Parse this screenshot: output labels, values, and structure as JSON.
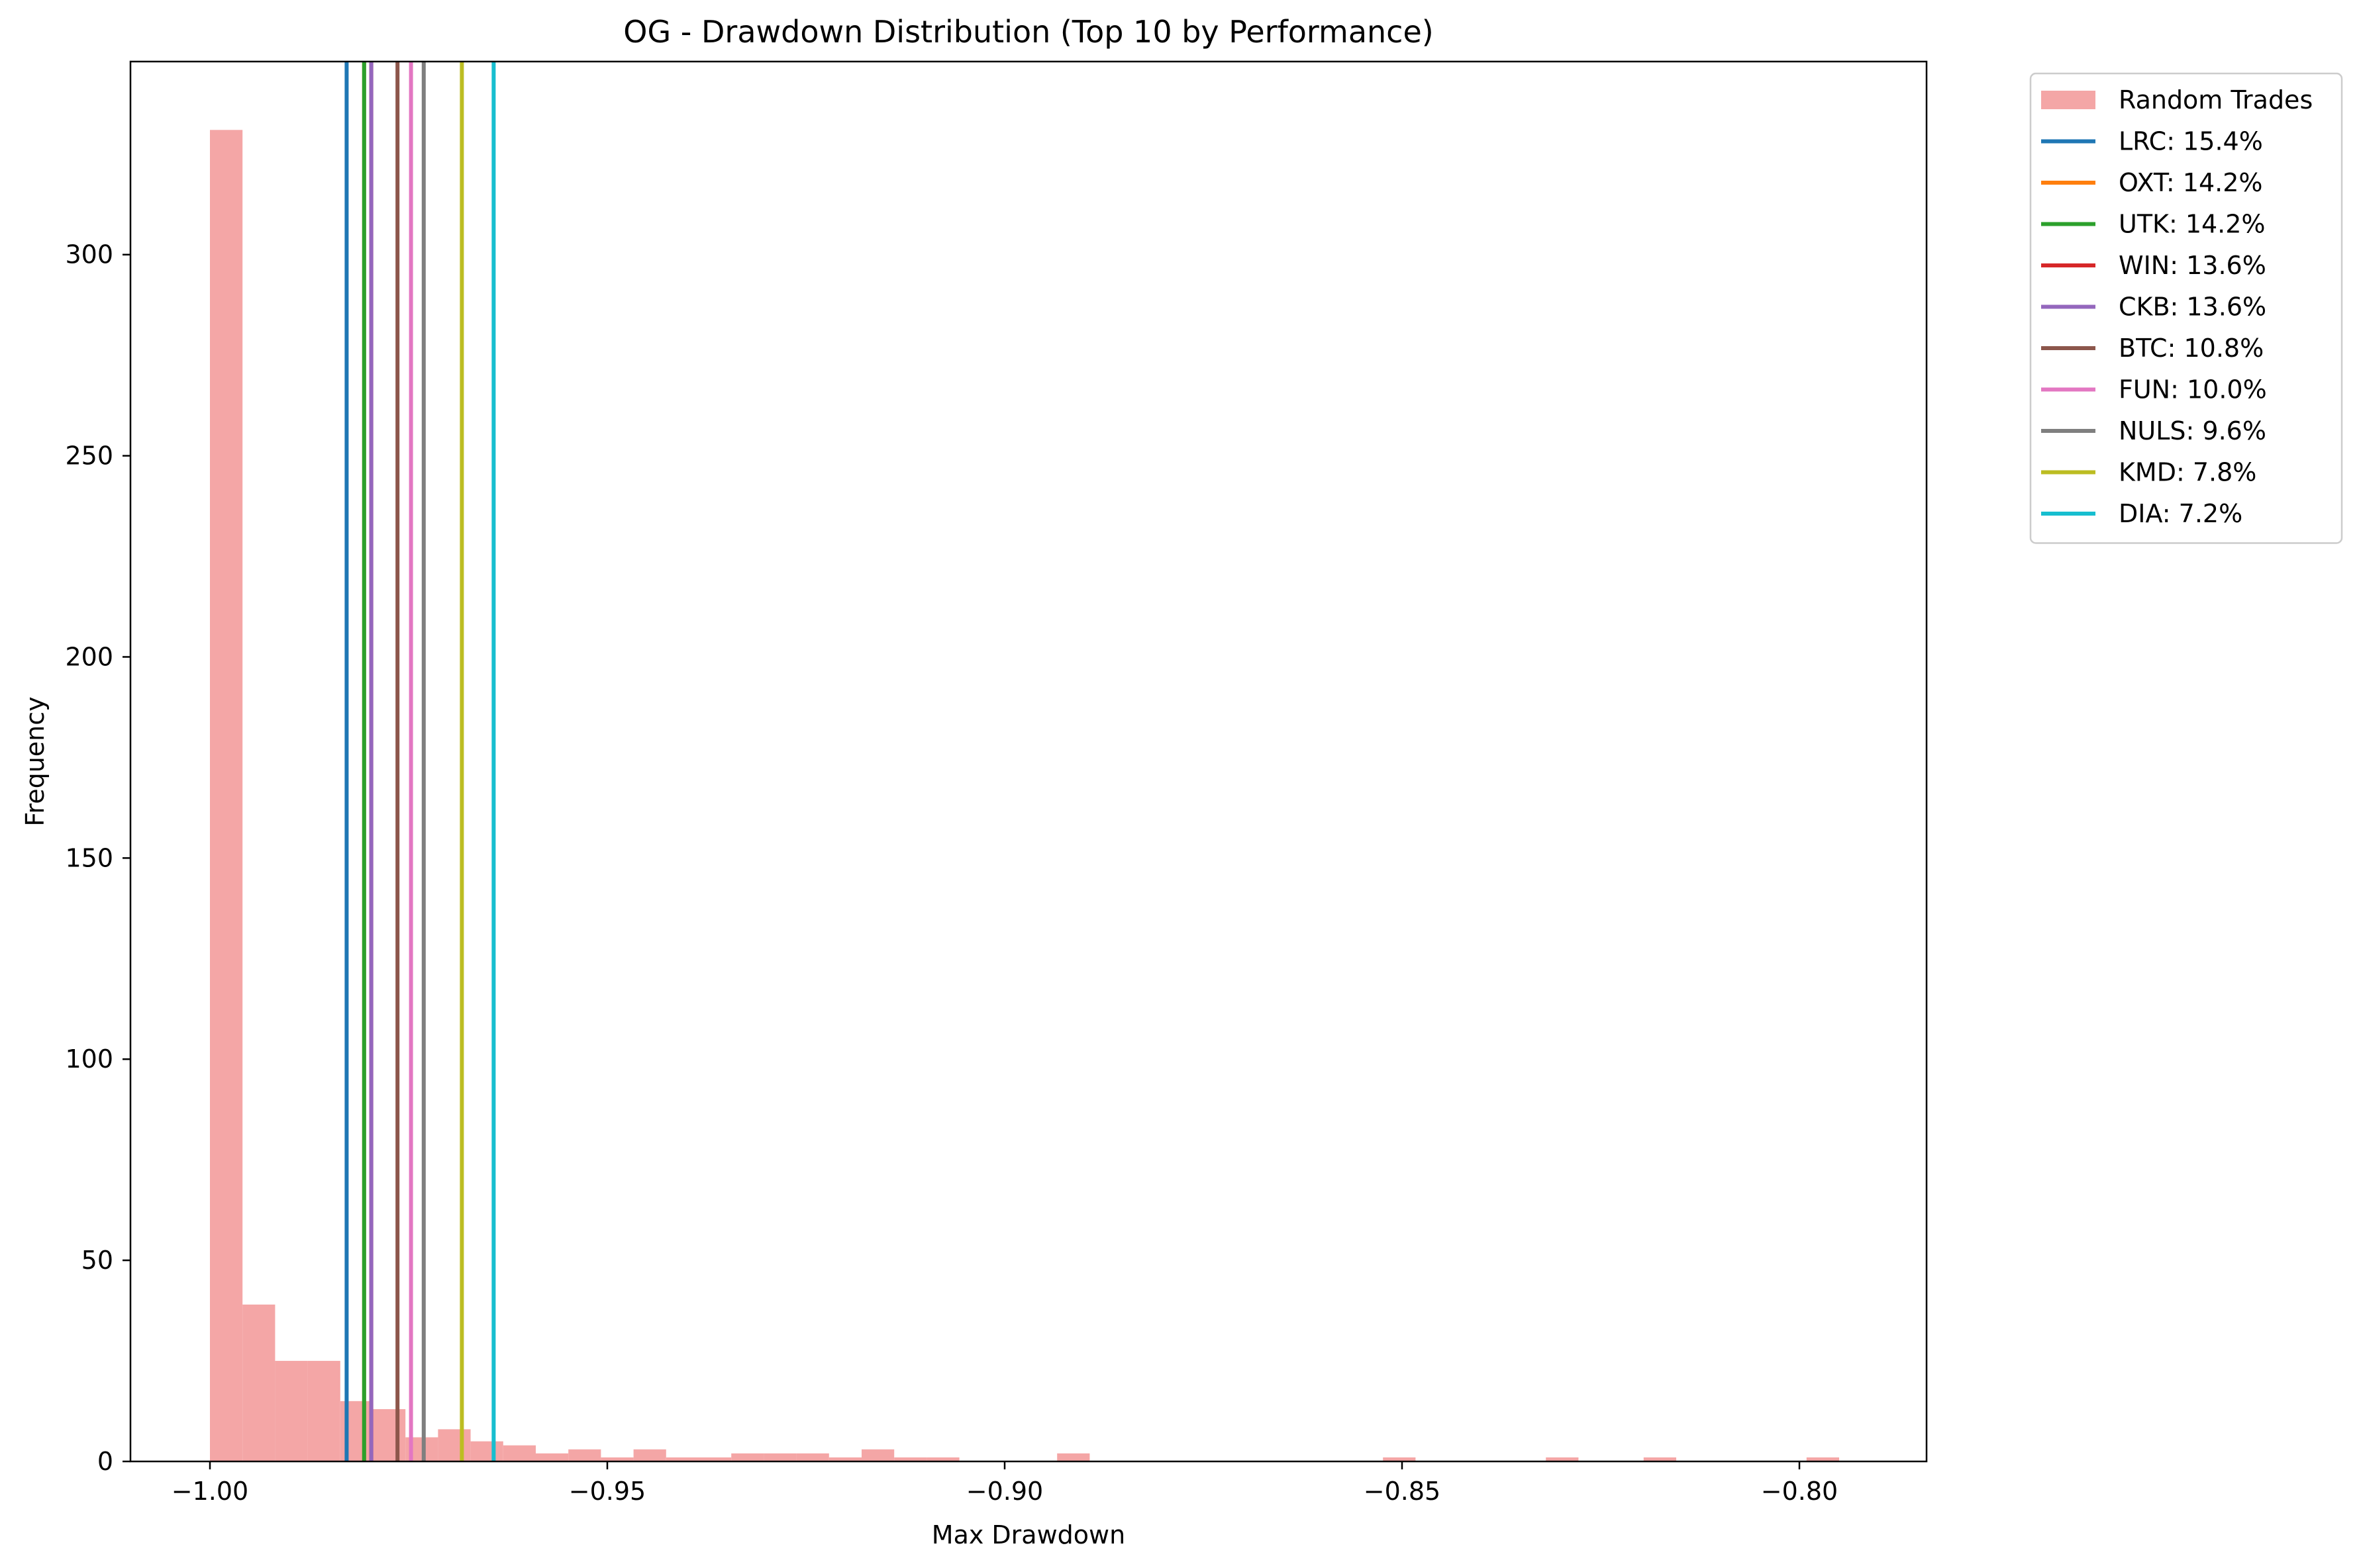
{
  "chart_data": {
    "type": "histogram",
    "title": "OG - Drawdown Distribution (Top 10 by Performance)",
    "xlabel": "Max Drawdown",
    "ylabel": "Frequency",
    "xlim": [
      -1.01,
      -0.784
    ],
    "ylim": [
      0,
      348
    ],
    "x_ticks": [
      {
        "value": -1.0,
        "label": "−1.00"
      },
      {
        "value": -0.95,
        "label": "−0.95"
      },
      {
        "value": -0.9,
        "label": "−0.90"
      },
      {
        "value": -0.85,
        "label": "−0.85"
      },
      {
        "value": -0.8,
        "label": "−0.80"
      }
    ],
    "y_ticks": [
      {
        "value": 0,
        "label": "0"
      },
      {
        "value": 50,
        "label": "50"
      },
      {
        "value": 100,
        "label": "100"
      },
      {
        "value": 150,
        "label": "150"
      },
      {
        "value": 200,
        "label": "200"
      },
      {
        "value": 250,
        "label": "250"
      },
      {
        "value": 300,
        "label": "300"
      }
    ],
    "grid": false,
    "legend_position": "outside-top-right",
    "histogram": {
      "name": "Random Trades",
      "color": "#f4a6a6",
      "bins": [
        {
          "x0": -1.0,
          "x1": -0.9959,
          "count": 331
        },
        {
          "x0": -0.9959,
          "x1": -0.9918,
          "count": 39
        },
        {
          "x0": -0.9918,
          "x1": -0.9877,
          "count": 25
        },
        {
          "x0": -0.9877,
          "x1": -0.9836,
          "count": 25
        },
        {
          "x0": -0.9836,
          "x1": -0.9795,
          "count": 15
        },
        {
          "x0": -0.9795,
          "x1": -0.9754,
          "count": 13
        },
        {
          "x0": -0.9754,
          "x1": -0.9713,
          "count": 6
        },
        {
          "x0": -0.9713,
          "x1": -0.9672,
          "count": 8
        },
        {
          "x0": -0.9672,
          "x1": -0.9631,
          "count": 5
        },
        {
          "x0": -0.9631,
          "x1": -0.959,
          "count": 4
        },
        {
          "x0": -0.959,
          "x1": -0.9549,
          "count": 2
        },
        {
          "x0": -0.9549,
          "x1": -0.9508,
          "count": 3
        },
        {
          "x0": -0.9508,
          "x1": -0.9467,
          "count": 1
        },
        {
          "x0": -0.9467,
          "x1": -0.9426,
          "count": 3
        },
        {
          "x0": -0.9426,
          "x1": -0.9385,
          "count": 1
        },
        {
          "x0": -0.9385,
          "x1": -0.9344,
          "count": 1
        },
        {
          "x0": -0.9344,
          "x1": -0.9303,
          "count": 2
        },
        {
          "x0": -0.9303,
          "x1": -0.9262,
          "count": 2
        },
        {
          "x0": -0.9262,
          "x1": -0.9221,
          "count": 2
        },
        {
          "x0": -0.9221,
          "x1": -0.918,
          "count": 1
        },
        {
          "x0": -0.918,
          "x1": -0.9139,
          "count": 3
        },
        {
          "x0": -0.9139,
          "x1": -0.9098,
          "count": 1
        },
        {
          "x0": -0.9098,
          "x1": -0.9057,
          "count": 1
        },
        {
          "x0": -0.8934,
          "x1": -0.8893,
          "count": 2
        },
        {
          "x0": -0.8524,
          "x1": -0.8483,
          "count": 1
        },
        {
          "x0": -0.8319,
          "x1": -0.8278,
          "count": 1
        },
        {
          "x0": -0.8196,
          "x1": -0.8155,
          "count": 1
        },
        {
          "x0": -0.7991,
          "x1": -0.795,
          "count": 1
        }
      ]
    },
    "series": [
      {
        "name": "LRC",
        "label": "LRC: 15.4%",
        "x": -0.9828,
        "color": "#1f77b4"
      },
      {
        "name": "OXT",
        "label": "OXT: 14.2%",
        "x": -0.9806,
        "color": "#ff7f0e"
      },
      {
        "name": "UTK",
        "label": "UTK: 14.2%",
        "x": -0.9806,
        "color": "#2ca02c"
      },
      {
        "name": "WIN",
        "label": "WIN: 13.6%",
        "x": -0.9797,
        "color": "#d62728"
      },
      {
        "name": "CKB",
        "label": "CKB: 13.6%",
        "x": -0.9797,
        "color": "#9467bd"
      },
      {
        "name": "BTC",
        "label": "BTC: 10.8%",
        "x": -0.9764,
        "color": "#8c564b"
      },
      {
        "name": "FUN",
        "label": "FUN: 10.0%",
        "x": -0.9747,
        "color": "#e377c2"
      },
      {
        "name": "NULS",
        "label": "NULS: 9.6%",
        "x": -0.9731,
        "color": "#7f7f7f"
      },
      {
        "name": "KMD",
        "label": "KMD: 7.8%",
        "x": -0.9683,
        "color": "#bcbd22"
      },
      {
        "name": "DIA",
        "label": "DIA: 7.2%",
        "x": -0.9643,
        "color": "#17becf"
      }
    ]
  }
}
